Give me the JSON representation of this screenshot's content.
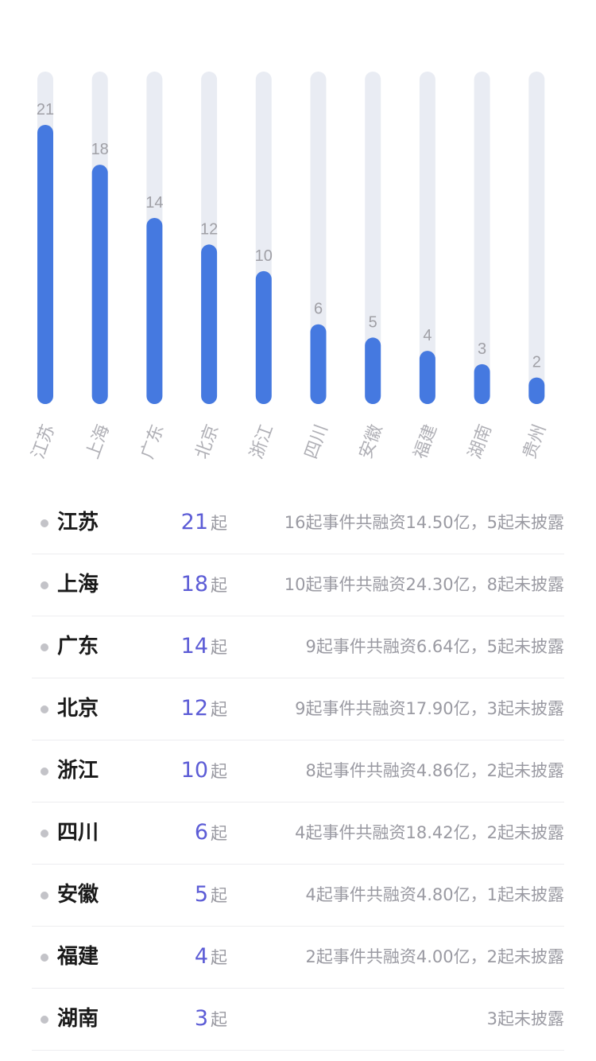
{
  "chart_data": {
    "type": "bar",
    "categories": [
      "江苏",
      "上海",
      "广东",
      "北京",
      "浙江",
      "四川",
      "安徽",
      "福建",
      "湖南",
      "贵州"
    ],
    "values": [
      21,
      18,
      14,
      12,
      10,
      6,
      5,
      4,
      3,
      2
    ],
    "ylim": [
      0,
      25
    ],
    "grid": false,
    "colors": {
      "bar": "#4579e0",
      "track": "#e9ecf3",
      "value_label": "#a0a0a6",
      "category_label": "#b0b0b6"
    }
  },
  "ranking": {
    "unit": "起",
    "rows": [
      {
        "name": "江苏",
        "count": "21",
        "detail": "16起事件共融资14.50亿，5起未披露"
      },
      {
        "name": "上海",
        "count": "18",
        "detail": "10起事件共融资24.30亿，8起未披露"
      },
      {
        "name": "广东",
        "count": "14",
        "detail": "9起事件共融资6.64亿，5起未披露"
      },
      {
        "name": "北京",
        "count": "12",
        "detail": "9起事件共融资17.90亿，3起未披露"
      },
      {
        "name": "浙江",
        "count": "10",
        "detail": "8起事件共融资4.86亿，2起未披露"
      },
      {
        "name": "四川",
        "count": "6",
        "detail": "4起事件共融资18.42亿，2起未披露"
      },
      {
        "name": "安徽",
        "count": "5",
        "detail": "4起事件共融资4.80亿，1起未披露"
      },
      {
        "name": "福建",
        "count": "4",
        "detail": "2起事件共融资4.00亿，2起未披露"
      },
      {
        "name": "湖南",
        "count": "3",
        "detail": "3起未披露"
      }
    ]
  }
}
